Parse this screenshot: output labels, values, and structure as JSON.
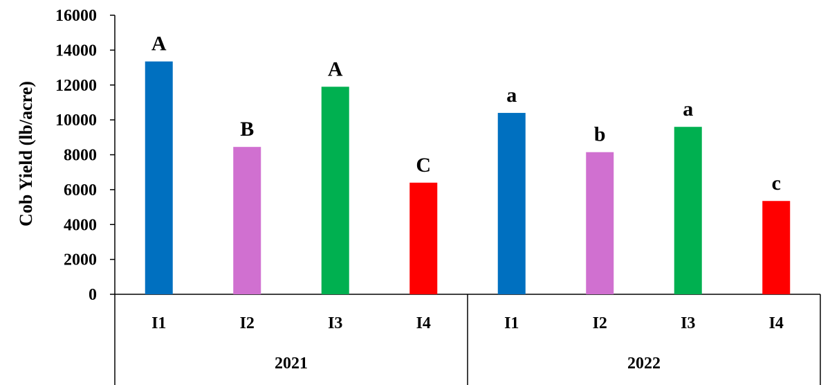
{
  "chart_data": {
    "type": "bar",
    "title": "",
    "xlabel": "",
    "ylabel": "Cob Yield (lb/acre)",
    "ylim": [
      0,
      16000
    ],
    "yticks": [
      "0",
      "2000",
      "4000",
      "6000",
      "8000",
      "10000",
      "12000",
      "14000",
      "16000"
    ],
    "grid": false,
    "legend": "none",
    "groups": [
      {
        "label": "2021",
        "categories": [
          "I1",
          "I2",
          "I3",
          "I4"
        ],
        "values": [
          13350,
          8450,
          11900,
          6400
        ],
        "significance": [
          "A",
          "B",
          "A",
          "C"
        ]
      },
      {
        "label": "2022",
        "categories": [
          "I1",
          "I2",
          "I3",
          "I4"
        ],
        "values": [
          10400,
          8150,
          9600,
          5350
        ],
        "significance": [
          "a",
          "b",
          "a",
          "c"
        ]
      }
    ],
    "colors": [
      "#0070C0",
      "#D070D0",
      "#00B050",
      "#FF0000"
    ]
  }
}
